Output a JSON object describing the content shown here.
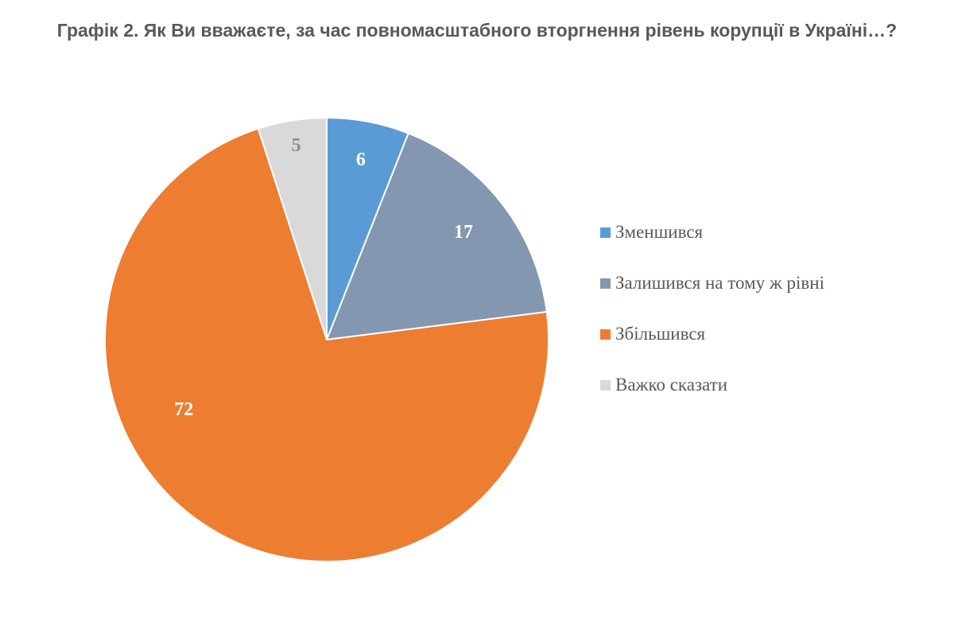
{
  "title": "Графік 2. Як Ви вважаєте, за час повномасштабного вторгнення рівень корупції в Україні…?",
  "chart_data": {
    "type": "pie",
    "title": "Графік 2. Як Ви вважаєте, за час повномасштабного вторгнення рівень корупції в Україні…?",
    "legend_position": "right",
    "start_angle": "top, clockwise",
    "slices": [
      {
        "label": "Зменшився",
        "value": 6,
        "color": "#5B9BD5",
        "label_color": "#ffffff"
      },
      {
        "label": "Залишився на тому ж рівні",
        "value": 17,
        "color": "#8497B0",
        "label_color": "#ffffff"
      },
      {
        "label": "Збільшився",
        "value": 72,
        "color": "#ED7D31",
        "label_color": "#ffffff"
      },
      {
        "label": "Важко сказати",
        "value": 5,
        "color": "#D9D9D9",
        "label_color": "#8c8c8c"
      }
    ]
  }
}
